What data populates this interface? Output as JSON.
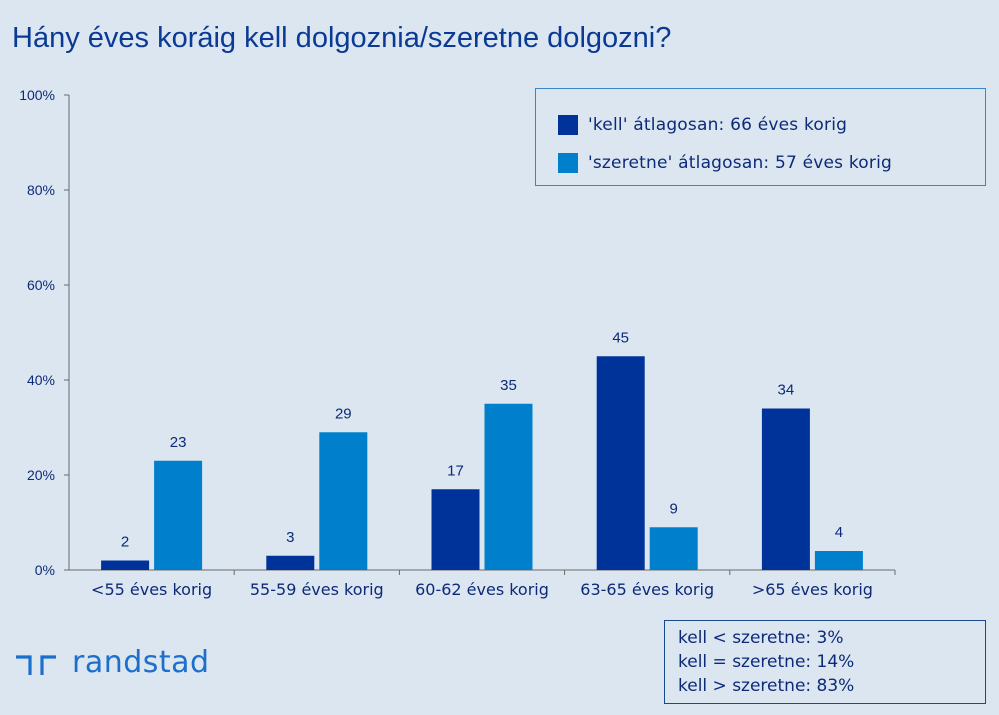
{
  "chart_data": {
    "type": "bar",
    "title": "Hány éves koráig kell dolgoznia/szeretne dolgozni?",
    "categories": [
      "<55 éves korig",
      "55-59 éves korig",
      "60-62 éves korig",
      "63-65 éves korig",
      ">65 éves korig"
    ],
    "series": [
      {
        "name": "'kell' átlagosan: 66 éves korig",
        "color": "#003399",
        "values": [
          2,
          3,
          17,
          45,
          34
        ]
      },
      {
        "name": "'szeretne' átlagosan: 57 éves korig",
        "color": "#0080cc",
        "values": [
          23,
          29,
          35,
          9,
          4
        ]
      }
    ],
    "yticks": [
      "0%",
      "20%",
      "40%",
      "60%",
      "80%",
      "100%"
    ],
    "ylim": [
      0,
      100
    ],
    "grid": false,
    "legend_position": "top-right"
  },
  "stats": [
    "kell < szeretne: 3%",
    "kell = szeretne: 14%",
    "kell > szeretne: 83%"
  ],
  "logo": {
    "text": "randstad",
    "icon": "randstad-logo-icon",
    "color": "#1d6fcc"
  },
  "colors": {
    "background": "#dce6f1",
    "text": "#0d2a78",
    "axis": "#6a6a6a"
  }
}
